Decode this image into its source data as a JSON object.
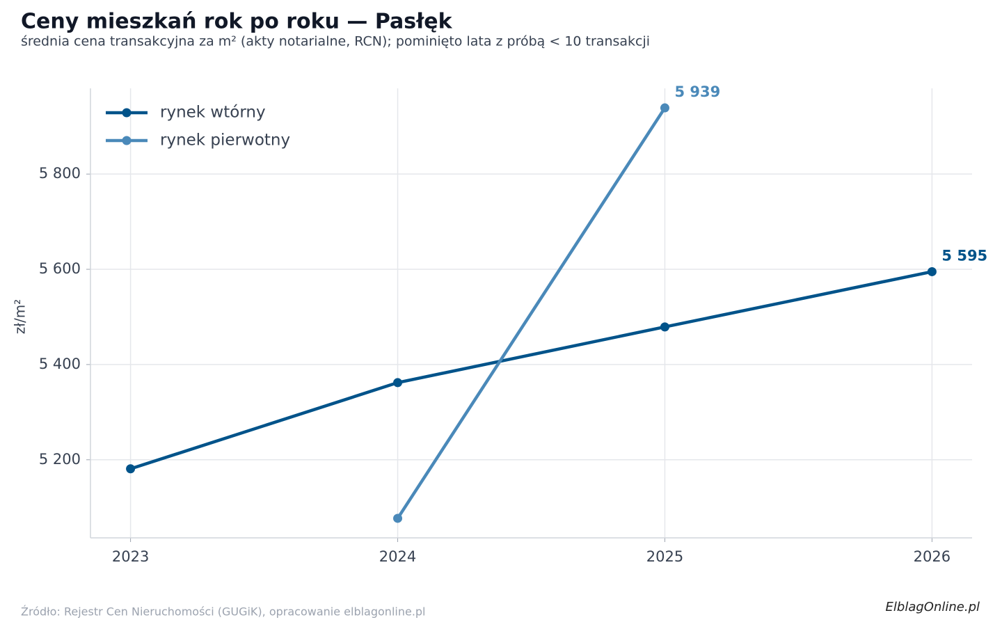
{
  "chart_data": {
    "type": "line",
    "title": "Ceny mieszkań rok po roku — Pasłęk",
    "subtitle": "średnia cena transakcyjna za m² (akty notarialne, RCN); pominięto lata z próbą < 10 transakcji",
    "y_label": "zł/m²",
    "source": "Źródło: Rejestr Cen Nieruchomości (GUGiK), opracowanie elblagonline.pl",
    "logo": "ElblagOnline.pl",
    "x": [
      2023,
      2024,
      2025,
      2026
    ],
    "xlim": [
      2022.85,
      2026.15
    ],
    "xticks": [
      2023,
      2024,
      2025,
      2026
    ],
    "ylim": [
      5036,
      5980
    ],
    "yticks": [
      {
        "value": 5200,
        "label": "5 200"
      },
      {
        "value": 5400,
        "label": "5 400"
      },
      {
        "value": 5600,
        "label": "5 600"
      },
      {
        "value": 5800,
        "label": "5 800"
      }
    ],
    "grid": true,
    "legend": "upper-left",
    "series": [
      {
        "name": "rynek wtórny",
        "color": "#00538a",
        "values": [
          5181,
          5362,
          5479,
          5595
        ],
        "value_labels": [
          null,
          null,
          null,
          "5 595"
        ]
      },
      {
        "name": "rynek pierwotny",
        "color": "#4a89b9",
        "values": [
          null,
          5077,
          5939,
          null
        ],
        "value_labels": [
          null,
          null,
          "5 939",
          null
        ]
      }
    ]
  }
}
